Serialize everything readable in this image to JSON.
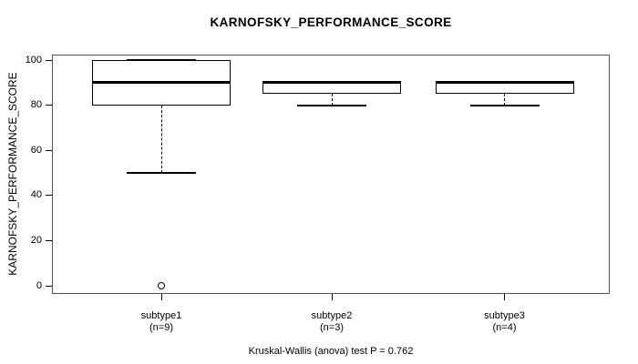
{
  "figure": {
    "background": "#ffffff",
    "line_color": "#000000",
    "frame_color": "#555555"
  },
  "chart_data": {
    "type": "boxplot",
    "title": "KARNOFSKY_PERFORMANCE_SCORE",
    "ylabel": "KARNOFSKY_PERFORMANCE_SCORE",
    "xlabel": "",
    "footer": "Kruskal-Wallis (anova) test P = 0.762",
    "ylim": [
      0,
      100
    ],
    "yticks": [
      0,
      20,
      40,
      60,
      80,
      100
    ],
    "grid": false,
    "legend": "none",
    "groups": [
      {
        "label": "subtype1",
        "sublabel": "(n=9)",
        "stats": {
          "whisker_low": 50,
          "q1": 80,
          "median": 90,
          "q3": 100,
          "whisker_high": 100
        },
        "outliers": [
          0
        ]
      },
      {
        "label": "subtype2",
        "sublabel": "(n=3)",
        "stats": {
          "whisker_low": 80,
          "q1": 85,
          "median": 90,
          "q3": 90,
          "whisker_high": 90
        },
        "outliers": []
      },
      {
        "label": "subtype3",
        "sublabel": "(n=4)",
        "stats": {
          "whisker_low": 80,
          "q1": 85,
          "median": 90,
          "q3": 90,
          "whisker_high": 90
        },
        "outliers": []
      }
    ]
  }
}
